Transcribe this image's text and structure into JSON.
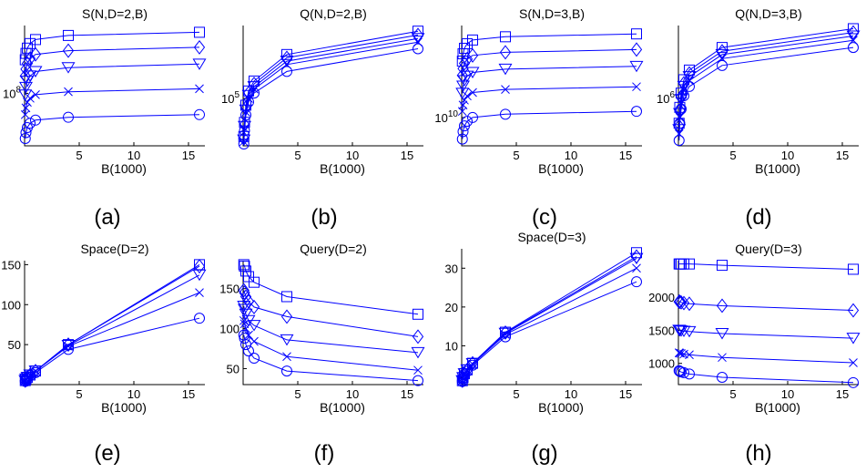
{
  "colors": {
    "series": "#0000ff",
    "axis": "#000000"
  },
  "chart_data": [
    {
      "panel": "a",
      "type": "line",
      "title": "S(N,D=2,B)",
      "xlabel": "B(1000)",
      "caption": "(a)",
      "x": [
        0.0625,
        0.125,
        0.25,
        0.5,
        1,
        4,
        16
      ],
      "xlim": [
        0,
        16.5
      ],
      "xticks": [
        5,
        10,
        15
      ],
      "yscale": "log",
      "ylim": [
        20000000,
        800000000
      ],
      "yticks": [
        {
          "value": 100000000,
          "base": "10",
          "exp": "8"
        }
      ],
      "series": [
        {
          "marker": "square",
          "values": [
            280000000,
            340000000,
            400000000,
            460000000,
            520000000,
            590000000,
            650000000
          ]
        },
        {
          "marker": "diamond",
          "values": [
            170000000,
            210000000,
            250000000,
            290000000,
            330000000,
            370000000,
            410000000
          ]
        },
        {
          "marker": "triangle-down",
          "values": [
            95000000,
            120000000,
            145000000,
            170000000,
            195000000,
            220000000,
            245000000
          ]
        },
        {
          "marker": "x",
          "values": [
            52000000,
            64000000,
            76000000,
            86000000,
            96000000,
            105000000,
            115000000
          ]
        },
        {
          "marker": "circle",
          "values": [
            25000000,
            30000000,
            35000000,
            40000000,
            44000000,
            48000000,
            52000000
          ]
        }
      ]
    },
    {
      "panel": "b",
      "type": "line",
      "title": "Q(N,D=2,B)",
      "xlabel": "B(1000)",
      "caption": "(b)",
      "x": [
        0.0625,
        0.125,
        0.25,
        0.5,
        1,
        4,
        16
      ],
      "xlim": [
        0,
        16.5
      ],
      "xticks": [
        5,
        10,
        15
      ],
      "yscale": "log",
      "ylim": [
        5000,
        10000000
      ],
      "yticks": [
        {
          "value": 100000,
          "base": "10",
          "exp": "5"
        }
      ],
      "series": [
        {
          "marker": "square",
          "values": [
            9000,
            22000,
            65000,
            160000,
            300000,
            1600000,
            7000000
          ]
        },
        {
          "marker": "diamond",
          "values": [
            8000,
            19000,
            55000,
            140000,
            250000,
            1300000,
            5500000
          ]
        },
        {
          "marker": "triangle-down",
          "values": [
            7200,
            17000,
            48000,
            120000,
            210000,
            1050000,
            4400000
          ]
        },
        {
          "marker": "x",
          "values": [
            6500,
            15000,
            42000,
            100000,
            180000,
            850000,
            3500000
          ]
        },
        {
          "marker": "circle",
          "values": [
            5600,
            13000,
            35000,
            80000,
            140000,
            550000,
            2300000
          ]
        }
      ]
    },
    {
      "panel": "c",
      "type": "line",
      "title": "S(N,D=3,B)",
      "xlabel": "B(1000)",
      "caption": "(c)",
      "x": [
        0.0625,
        0.125,
        0.25,
        0.5,
        1,
        4,
        16
      ],
      "xlim": [
        0,
        16.5
      ],
      "xticks": [
        5,
        10,
        15
      ],
      "yscale": "log",
      "ylim": [
        3000000000,
        500000000000
      ],
      "yticks": [
        {
          "value": 10000000000,
          "base": "10",
          "exp": "10"
        }
      ],
      "series": [
        {
          "marker": "square",
          "values": [
            110000000000,
            150000000000,
            190000000000,
            230000000000,
            270000000000,
            310000000000,
            350000000000
          ]
        },
        {
          "marker": "diamond",
          "values": [
            60000000000,
            80000000000,
            100000000000,
            120000000000,
            140000000000,
            160000000000,
            180000000000
          ]
        },
        {
          "marker": "triangle-down",
          "values": [
            28000000000,
            38000000000,
            48000000000,
            58000000000,
            68000000000,
            78000000000,
            88000000000
          ]
        },
        {
          "marker": "x",
          "values": [
            13000000000,
            17000000000,
            21000000000,
            25000000000,
            29000000000,
            33000000000,
            37000000000
          ]
        },
        {
          "marker": "circle",
          "values": [
            4000000000,
            5500000000,
            7000000000,
            8500000000,
            10000000000,
            11500000000,
            13000000000
          ]
        }
      ]
    },
    {
      "panel": "d",
      "type": "line",
      "title": "Q(N,D=3,B)",
      "xlabel": "B(1000)",
      "caption": "(d)",
      "x": [
        0.0625,
        0.125,
        0.25,
        0.5,
        1,
        4,
        16
      ],
      "xlim": [
        0,
        16.5
      ],
      "xticks": [
        5,
        10,
        15
      ],
      "yscale": "log",
      "ylim": [
        100000,
        35000000
      ],
      "yticks": [
        {
          "value": 1000000,
          "base": "10",
          "exp": "6"
        }
      ],
      "series": [
        {
          "marker": "square",
          "values": [
            300000,
            650000,
            1300000,
            2500000,
            4000000,
            12000000,
            30000000
          ]
        },
        {
          "marker": "diamond",
          "values": [
            260000,
            560000,
            1100000,
            2100000,
            3400000,
            10000000,
            25000000
          ]
        },
        {
          "marker": "triangle-down",
          "values": [
            220000,
            480000,
            950000,
            1800000,
            2900000,
            8500000,
            21000000
          ]
        },
        {
          "marker": "x",
          "values": [
            180000,
            400000,
            800000,
            1500000,
            2400000,
            7000000,
            17000000
          ]
        },
        {
          "marker": "circle",
          "values": [
            130000,
            300000,
            600000,
            1150000,
            1800000,
            5000000,
            12000000
          ]
        }
      ]
    },
    {
      "panel": "e",
      "type": "line",
      "title": "Space(D=2)",
      "xlabel": "B(1000)",
      "caption": "(e)",
      "x": [
        0.0625,
        0.125,
        0.25,
        0.5,
        1,
        4,
        16
      ],
      "xlim": [
        0,
        16.5
      ],
      "xticks": [
        5,
        10,
        15
      ],
      "yscale": "linear",
      "ylim": [
        0,
        155
      ],
      "yticks": [
        50,
        100,
        150
      ],
      "series": [
        {
          "marker": "square",
          "values": [
            5,
            7,
            9,
            12,
            17,
            50,
            150
          ]
        },
        {
          "marker": "diamond",
          "values": [
            5,
            7,
            9,
            12,
            17,
            50,
            148
          ]
        },
        {
          "marker": "triangle-down",
          "values": [
            5,
            7,
            9,
            12,
            17,
            49,
            137
          ]
        },
        {
          "marker": "x",
          "values": [
            5,
            7,
            9,
            12,
            17,
            48,
            115
          ]
        },
        {
          "marker": "circle",
          "values": [
            4,
            6,
            8,
            11,
            15,
            44,
            83
          ]
        }
      ]
    },
    {
      "panel": "f",
      "type": "line",
      "title": "Query(D=2)",
      "xlabel": "B(1000)",
      "caption": "(f)",
      "x": [
        0.0625,
        0.125,
        0.25,
        0.5,
        1,
        4,
        16
      ],
      "xlim": [
        0,
        16.5
      ],
      "xticks": [
        5,
        10,
        15
      ],
      "yscale": "linear",
      "ylim": [
        30,
        185
      ],
      "yticks": [
        50,
        100,
        150
      ],
      "series": [
        {
          "marker": "square",
          "values": [
            180,
            178,
            172,
            165,
            158,
            140,
            118
          ]
        },
        {
          "marker": "diamond",
          "values": [
            148,
            145,
            140,
            134,
            127,
            115,
            90
          ]
        },
        {
          "marker": "triangle-down",
          "values": [
            128,
            124,
            118,
            110,
            104,
            86,
            70
          ]
        },
        {
          "marker": "x",
          "values": [
            110,
            106,
            100,
            92,
            84,
            65,
            48
          ]
        },
        {
          "marker": "circle",
          "values": [
            92,
            88,
            80,
            72,
            63,
            47,
            35
          ]
        }
      ]
    },
    {
      "panel": "g",
      "type": "line",
      "title": "Space(D=3)",
      "xlabel": "B(1000)",
      "caption": "(g)",
      "x": [
        0.0625,
        0.125,
        0.25,
        0.5,
        1,
        4,
        16
      ],
      "xlim": [
        0,
        16.5
      ],
      "xticks": [
        5,
        10,
        15
      ],
      "yscale": "linear",
      "ylim": [
        0,
        35
      ],
      "yticks": [
        10,
        20,
        30
      ],
      "series": [
        {
          "marker": "square",
          "values": [
            1,
            1.8,
            2.8,
            3.8,
            5.5,
            13.5,
            34
          ]
        },
        {
          "marker": "diamond",
          "values": [
            1,
            1.8,
            2.8,
            3.8,
            5.5,
            13.4,
            33
          ]
        },
        {
          "marker": "triangle-down",
          "values": [
            1,
            1.8,
            2.8,
            3.8,
            5.4,
            13.2,
            32.5
          ]
        },
        {
          "marker": "x",
          "values": [
            1,
            1.8,
            2.7,
            3.7,
            5.3,
            12.9,
            30
          ]
        },
        {
          "marker": "circle",
          "values": [
            0.8,
            1.6,
            2.5,
            3.4,
            5,
            12.3,
            26.5
          ]
        }
      ]
    },
    {
      "panel": "h",
      "type": "line",
      "title": "Query(D=3)",
      "xlabel": "B(1000)",
      "caption": "(h)",
      "x": [
        0.0625,
        0.125,
        0.25,
        0.5,
        1,
        4,
        16
      ],
      "xlim": [
        0,
        16.5
      ],
      "xticks": [
        5,
        10,
        15
      ],
      "yscale": "linear",
      "ylim": [
        680,
        2550
      ],
      "yticks": [
        1000,
        1500,
        2000
      ],
      "series": [
        {
          "marker": "square",
          "values": [
            2500,
            2500,
            2500,
            2500,
            2500,
            2480,
            2420
          ]
        },
        {
          "marker": "diamond",
          "values": [
            1930,
            1930,
            1920,
            1910,
            1900,
            1870,
            1800
          ]
        },
        {
          "marker": "triangle-down",
          "values": [
            1500,
            1495,
            1490,
            1485,
            1480,
            1450,
            1380
          ]
        },
        {
          "marker": "x",
          "values": [
            1160,
            1155,
            1150,
            1140,
            1130,
            1090,
            1010
          ]
        },
        {
          "marker": "circle",
          "values": [
            890,
            880,
            870,
            860,
            840,
            790,
            710
          ]
        }
      ]
    }
  ]
}
